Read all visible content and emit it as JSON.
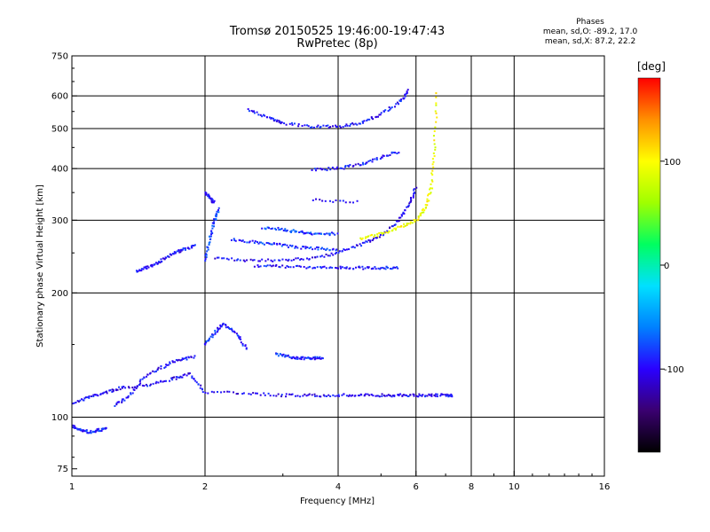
{
  "header": {
    "title": "Tromsø 20150525 19:46:00-19:47:43",
    "subtitle": "RwPretec (8p)"
  },
  "stats": {
    "heading": "Phases",
    "line1": "mean, sd,O: -89.2, 17.0",
    "line2": "mean, sd,X:  87.2, 22.2"
  },
  "colorbar": {
    "unit": "[deg]",
    "ticks": [
      100,
      0,
      -100
    ],
    "range": [
      -180,
      180
    ],
    "colors": [
      "#000000",
      "#3a0070",
      "#2a00ff",
      "#0080ff",
      "#00e0ff",
      "#00ff60",
      "#a0ff00",
      "#ffff00",
      "#ff9000",
      "#ff0000"
    ]
  },
  "chart_data": {
    "type": "scatter",
    "title": "Tromsø 20150525 19:46:00-19:47:43",
    "subtitle": "RwPretec (8p)",
    "xlabel": "Frequency [MHz]",
    "ylabel": "Stationary phase Virtual Height [km]",
    "x_scale": "log",
    "y_scale": "log",
    "xlim": [
      1,
      16
    ],
    "ylim": [
      72,
      750
    ],
    "x_ticks": [
      1,
      2,
      4,
      6,
      8,
      10,
      16
    ],
    "y_ticks": [
      75,
      100,
      200,
      300,
      400,
      500,
      600,
      750
    ],
    "grid_x": [
      2,
      4,
      6,
      8,
      10
    ],
    "grid_y": [
      100,
      200,
      300,
      400,
      500,
      600
    ],
    "color_quantity": "phase [deg]",
    "traces": [
      {
        "x": [
          1.0,
          1.1,
          1.2,
          1.3,
          1.5,
          1.7,
          1.85,
          2.0,
          2.5,
          3.0,
          3.5,
          4.0,
          4.5,
          5.0,
          5.5,
          6.0,
          6.5,
          7.0,
          7.3
        ],
        "y": [
          108,
          112,
          115,
          118,
          120,
          124,
          127,
          115,
          114,
          113,
          113,
          113,
          113,
          113,
          113,
          113,
          113,
          113,
          113
        ],
        "phase": -100
      },
      {
        "x": [
          1.25,
          1.35,
          1.45,
          1.6,
          1.75,
          1.9
        ],
        "y": [
          107,
          112,
          125,
          132,
          138,
          140
        ],
        "phase": -95
      },
      {
        "x": [
          1.0,
          1.05,
          1.1,
          1.15,
          1.2
        ],
        "y": [
          95,
          93,
          92,
          93,
          94
        ],
        "phase": -90
      },
      {
        "x": [
          1.4,
          1.5,
          1.6,
          1.7,
          1.8,
          1.9
        ],
        "y": [
          225,
          232,
          240,
          250,
          255,
          260
        ],
        "phase": -95
      },
      {
        "x": [
          2.0,
          2.1,
          2.2,
          2.35,
          2.5
        ],
        "y": [
          150,
          160,
          168,
          160,
          145
        ],
        "phase": -90
      },
      {
        "x": [
          2.1,
          2.5,
          3.0,
          3.5,
          4.0,
          4.5,
          5.0,
          5.5,
          5.8,
          6.0
        ],
        "y": [
          242,
          240,
          240,
          243,
          250,
          262,
          275,
          300,
          330,
          360
        ],
        "phase": -100
      },
      {
        "x": [
          2.3,
          2.6,
          2.9,
          3.2,
          3.6,
          4.0
        ],
        "y": [
          270,
          265,
          262,
          258,
          256,
          255
        ],
        "phase": -85
      },
      {
        "x": [
          2.6,
          3.0,
          3.5,
          4.0,
          4.5,
          5.0,
          5.5
        ],
        "y": [
          232,
          232,
          230,
          230,
          230,
          230,
          230
        ],
        "phase": -95
      },
      {
        "x": [
          2.7,
          3.0,
          3.3,
          3.6,
          4.0
        ],
        "y": [
          288,
          285,
          280,
          278,
          278
        ],
        "phase": -80
      },
      {
        "x": [
          4.5,
          5.0,
          5.5,
          6.0,
          6.3,
          6.5,
          6.6,
          6.7
        ],
        "y": [
          270,
          278,
          288,
          300,
          320,
          360,
          450,
          620
        ],
        "phase": 95
      },
      {
        "x": [
          3.5,
          4.0,
          4.5,
          5.0,
          5.5
        ],
        "y": [
          398,
          400,
          410,
          425,
          440
        ],
        "phase": -95
      },
      {
        "x": [
          2.5,
          2.8,
          3.0,
          3.5,
          4.0,
          4.5,
          5.0,
          5.5,
          5.8
        ],
        "y": [
          555,
          530,
          515,
          505,
          505,
          515,
          540,
          580,
          620
        ],
        "phase": -95
      },
      {
        "x": [
          2.0,
          2.05,
          2.1,
          2.15
        ],
        "y": [
          240,
          270,
          300,
          320
        ],
        "phase": -80
      },
      {
        "x": [
          2.0,
          2.05,
          2.1
        ],
        "y": [
          350,
          340,
          330
        ],
        "phase": -100
      },
      {
        "x": [
          2.9,
          3.1,
          3.3,
          3.5,
          3.7
        ],
        "y": [
          142,
          140,
          139,
          139,
          139
        ],
        "phase": -90
      },
      {
        "x": [
          3.5,
          4.5
        ],
        "y": [
          335,
          333
        ],
        "phase": -100
      }
    ]
  }
}
